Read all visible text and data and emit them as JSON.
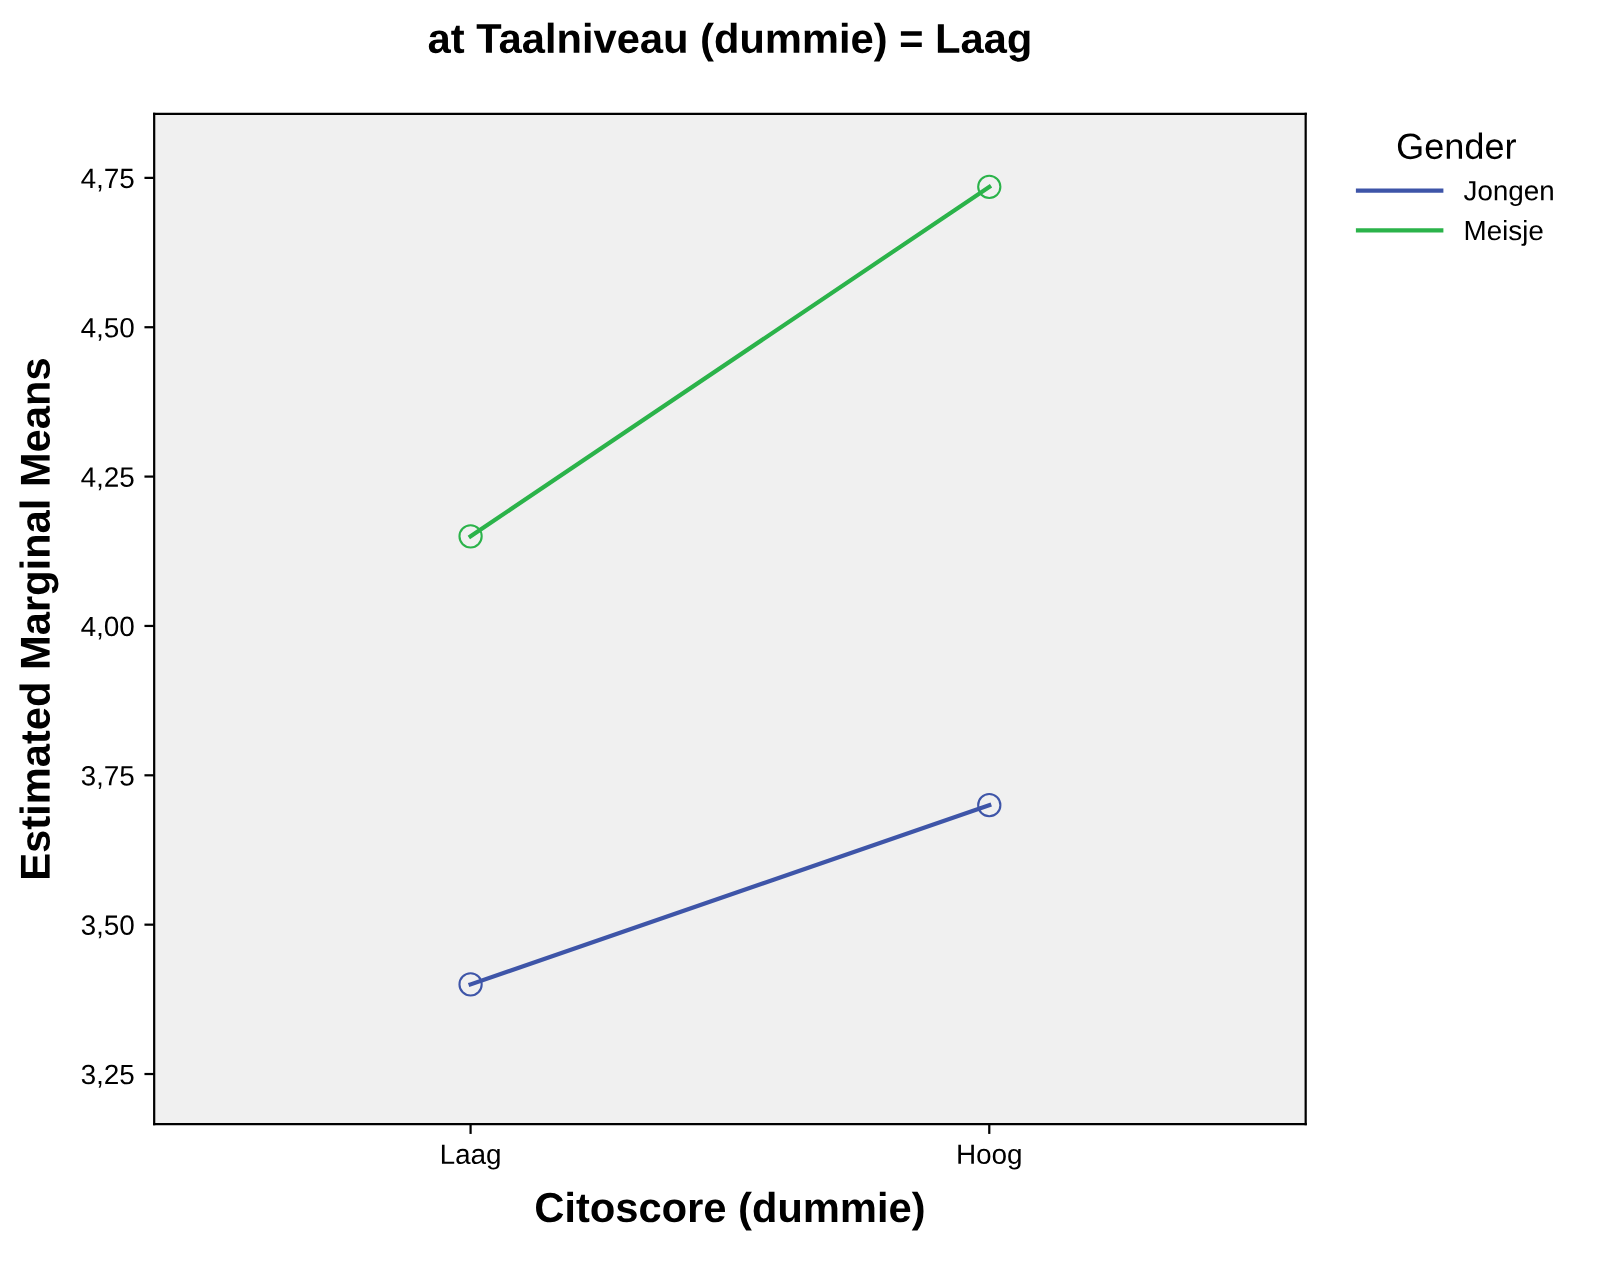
{
  "chart_data": {
    "type": "line",
    "title": "at Taalniveau (dummie) = Laag",
    "xlabel": "Citoscore (dummie)",
    "ylabel": "Estimated Marginal Means",
    "legend_title": "Gender",
    "categories": [
      "Laag",
      "Hoog"
    ],
    "series": [
      {
        "name": "Jongen",
        "color": "#3e55a8",
        "values": [
          3.4,
          3.7
        ]
      },
      {
        "name": "Meisje",
        "color": "#2bb34a",
        "values": [
          4.15,
          4.735
        ]
      }
    ],
    "ylim": [
      3.166,
      4.857
    ],
    "yticks": [
      {
        "value": 3.25,
        "label": "3,25"
      },
      {
        "value": 3.5,
        "label": "3,50"
      },
      {
        "value": 3.75,
        "label": "3,75"
      },
      {
        "value": 4.0,
        "label": "4,00"
      },
      {
        "value": 4.25,
        "label": "4,25"
      },
      {
        "value": 4.5,
        "label": "4,50"
      },
      {
        "value": 4.75,
        "label": "4,75"
      }
    ],
    "grid": false,
    "legend": "top right",
    "marker": "circle",
    "line_style": "solid"
  }
}
